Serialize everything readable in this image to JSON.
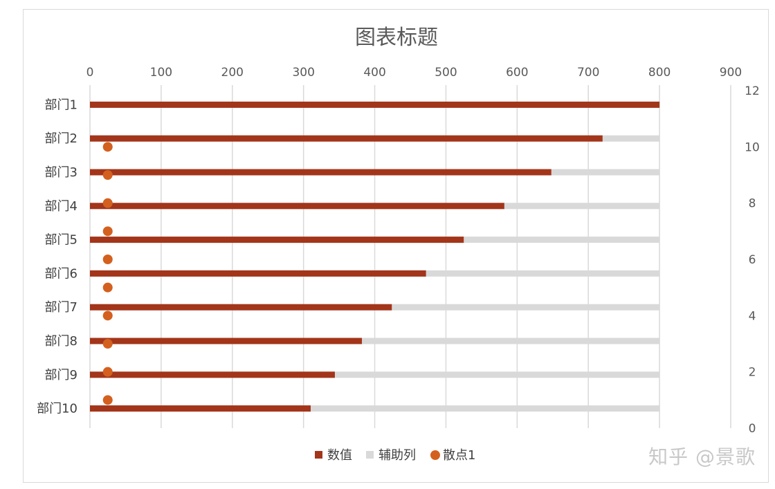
{
  "chart_data": {
    "type": "bar",
    "orientation": "horizontal",
    "title": "图表标题",
    "categories": [
      "部门1",
      "部门2",
      "部门3",
      "部门4",
      "部门5",
      "部门6",
      "部门7",
      "部门8",
      "部门9",
      "部门10"
    ],
    "series": [
      {
        "name": "数值",
        "type": "bar",
        "color": "#a3351a",
        "values": [
          800,
          720,
          648,
          582,
          525,
          472,
          424,
          382,
          344,
          310
        ]
      },
      {
        "name": "辅助列",
        "type": "bar",
        "color": "#d9d9d9",
        "values": [
          800,
          800,
          800,
          800,
          800,
          800,
          800,
          800,
          800,
          800
        ]
      },
      {
        "name": "散点1",
        "type": "scatter",
        "color": "#d4601f",
        "points": [
          {
            "x": 25,
            "y": 10
          },
          {
            "x": 25,
            "y": 9
          },
          {
            "x": 25,
            "y": 8
          },
          {
            "x": 25,
            "y": 7
          },
          {
            "x": 25,
            "y": 6
          },
          {
            "x": 25,
            "y": 5
          },
          {
            "x": 25,
            "y": 4
          },
          {
            "x": 25,
            "y": 3
          },
          {
            "x": 25,
            "y": 2
          },
          {
            "x": 25,
            "y": 1
          }
        ]
      }
    ],
    "x_axis": {
      "position": "top",
      "range": [
        0,
        900
      ],
      "ticks": [
        0,
        100,
        200,
        300,
        400,
        500,
        600,
        700,
        800,
        900
      ]
    },
    "y2_axis": {
      "position": "right",
      "range": [
        0,
        12
      ],
      "ticks": [
        0,
        2,
        4,
        6,
        8,
        10,
        12
      ]
    },
    "grid": true,
    "legend": {
      "position": "bottom",
      "entries": [
        "数值",
        "辅助列",
        "散点1"
      ]
    }
  },
  "watermark": "知乎 @景歌"
}
